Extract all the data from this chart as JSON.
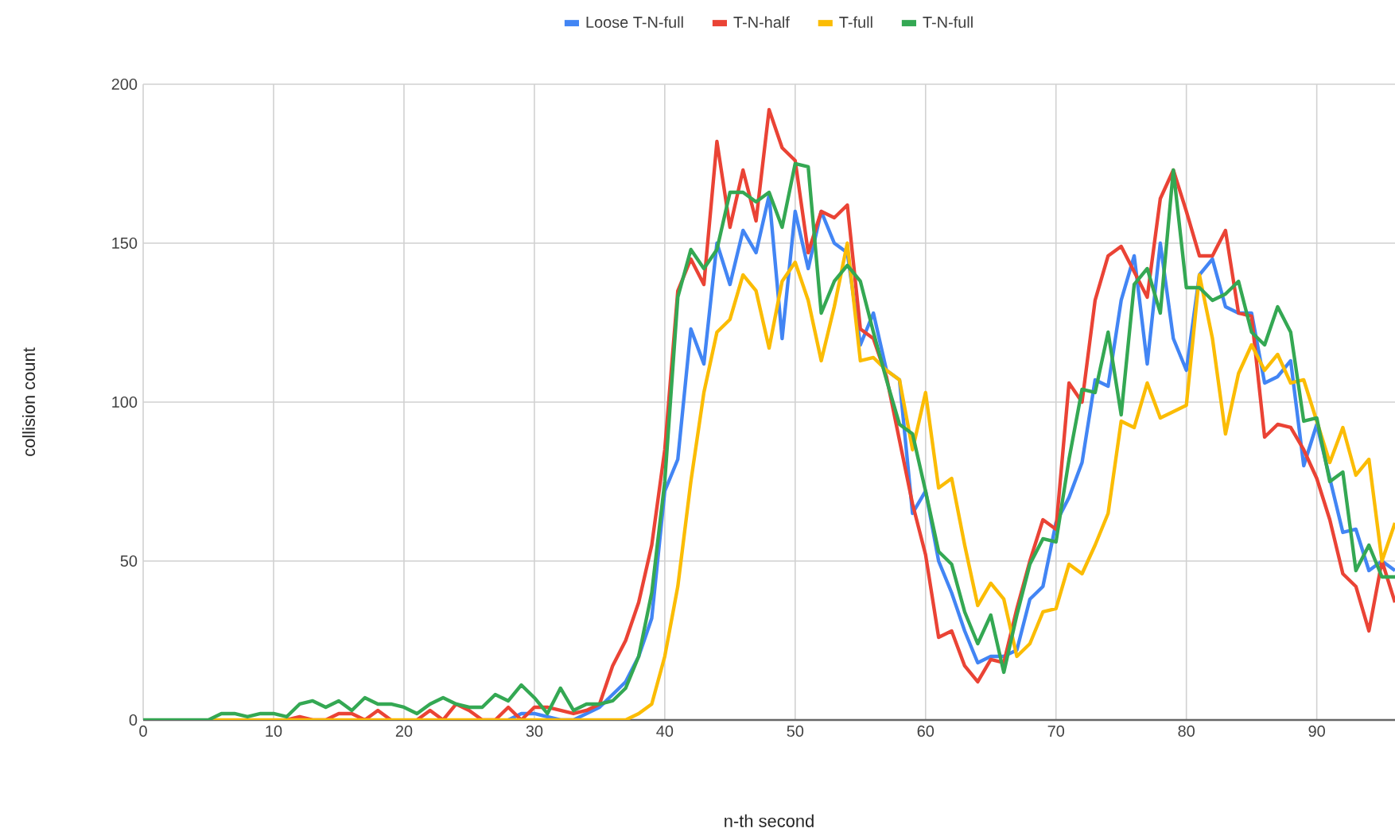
{
  "chart_data": {
    "type": "line",
    "xlabel": "n-th second",
    "ylabel": "collision count",
    "x": [
      0,
      1,
      2,
      3,
      4,
      5,
      6,
      7,
      8,
      9,
      10,
      11,
      12,
      13,
      14,
      15,
      16,
      17,
      18,
      19,
      20,
      21,
      22,
      23,
      24,
      25,
      26,
      27,
      28,
      29,
      30,
      31,
      32,
      33,
      34,
      35,
      36,
      37,
      38,
      39,
      40,
      41,
      42,
      43,
      44,
      45,
      46,
      47,
      48,
      49,
      50,
      51,
      52,
      53,
      54,
      55,
      56,
      57,
      58,
      59,
      60,
      61,
      62,
      63,
      64,
      65,
      66,
      67,
      68,
      69,
      70,
      71,
      72,
      73,
      74,
      75,
      76,
      77,
      78,
      79,
      80,
      81,
      82,
      83,
      84,
      85,
      86,
      87,
      88,
      89,
      90,
      91,
      92,
      93,
      94,
      95,
      96
    ],
    "series": [
      {
        "name": "Loose T-N-full",
        "color": "#4285f4",
        "values": [
          null,
          null,
          null,
          null,
          null,
          null,
          null,
          null,
          null,
          null,
          null,
          null,
          null,
          null,
          null,
          null,
          null,
          null,
          null,
          null,
          null,
          null,
          null,
          null,
          null,
          null,
          null,
          null,
          0,
          2,
          2,
          1,
          0,
          0,
          2,
          4,
          8,
          12,
          20,
          32,
          72,
          82,
          123,
          112,
          150,
          137,
          154,
          147,
          165,
          120,
          160,
          142,
          160,
          150,
          147,
          118,
          128,
          110,
          107,
          65,
          72,
          50,
          40,
          28,
          18,
          20,
          20,
          22,
          38,
          42,
          62,
          70,
          81,
          107,
          105,
          132,
          146,
          112,
          150,
          120,
          110,
          140,
          145,
          130,
          128,
          128,
          106,
          108,
          113,
          80,
          93,
          76,
          59,
          60,
          47,
          50,
          47
        ]
      },
      {
        "name": "T-N-half",
        "color": "#ea4335",
        "values": [
          null,
          null,
          null,
          null,
          null,
          null,
          null,
          null,
          null,
          null,
          null,
          0,
          1,
          0,
          0,
          2,
          2,
          0,
          3,
          0,
          null,
          0,
          3,
          0,
          5,
          3,
          0,
          0,
          4,
          0,
          4,
          4,
          3,
          2,
          3,
          5,
          17,
          25,
          37,
          55,
          85,
          135,
          145,
          137,
          182,
          155,
          173,
          157,
          192,
          180,
          176,
          147,
          160,
          158,
          162,
          123,
          120,
          108,
          88,
          68,
          52,
          26,
          28,
          17,
          12,
          19,
          18,
          35,
          50,
          63,
          60,
          106,
          100,
          132,
          146,
          149,
          141,
          133,
          164,
          173,
          160,
          146,
          146,
          154,
          128,
          127,
          89,
          93,
          92,
          85,
          76,
          63,
          46,
          42,
          28,
          50,
          37
        ]
      },
      {
        "name": "T-full",
        "color": "#fbbc04",
        "values": [
          null,
          null,
          null,
          null,
          null,
          0,
          0,
          0,
          0,
          0,
          0,
          0,
          0,
          0,
          0,
          0,
          0,
          0,
          0,
          0,
          0,
          0,
          0,
          0,
          0,
          0,
          0,
          0,
          0,
          0,
          0,
          0,
          0,
          0,
          0,
          0,
          0,
          0,
          2,
          5,
          20,
          42,
          75,
          103,
          122,
          126,
          140,
          135,
          117,
          138,
          144,
          132,
          113,
          130,
          150,
          113,
          114,
          110,
          107,
          85,
          103,
          73,
          76,
          55,
          36,
          43,
          38,
          20,
          24,
          34,
          35,
          49,
          46,
          55,
          65,
          94,
          92,
          106,
          95,
          97,
          99,
          140,
          120,
          90,
          109,
          118,
          110,
          115,
          106,
          107,
          94,
          81,
          92,
          77,
          82,
          50,
          62
        ]
      },
      {
        "name": "T-N-full",
        "color": "#34a853",
        "values": [
          0,
          0,
          0,
          0,
          0,
          0,
          2,
          2,
          1,
          2,
          2,
          1,
          5,
          6,
          4,
          6,
          3,
          7,
          5,
          5,
          4,
          2,
          5,
          7,
          5,
          4,
          4,
          8,
          6,
          11,
          7,
          2,
          10,
          3,
          5,
          5,
          6,
          10,
          20,
          40,
          75,
          133,
          148,
          142,
          148,
          166,
          166,
          163,
          166,
          155,
          175,
          174,
          128,
          138,
          143,
          138,
          122,
          107,
          93,
          90,
          72,
          53,
          49,
          34,
          24,
          33,
          15,
          33,
          49,
          57,
          56,
          82,
          104,
          103,
          122,
          96,
          137,
          142,
          128,
          173,
          136,
          136,
          132,
          134,
          138,
          122,
          118,
          130,
          122,
          94,
          95,
          75,
          78,
          47,
          55,
          45,
          45
        ]
      }
    ],
    "xlim": [
      0,
      96
    ],
    "ylim": [
      0,
      200
    ],
    "xticks": [
      0,
      10,
      20,
      30,
      40,
      50,
      60,
      70,
      80,
      90
    ],
    "yticks": [
      0,
      50,
      100,
      150,
      200
    ],
    "grid": true,
    "legend": "top",
    "marker": "none",
    "line_style": "solid"
  }
}
